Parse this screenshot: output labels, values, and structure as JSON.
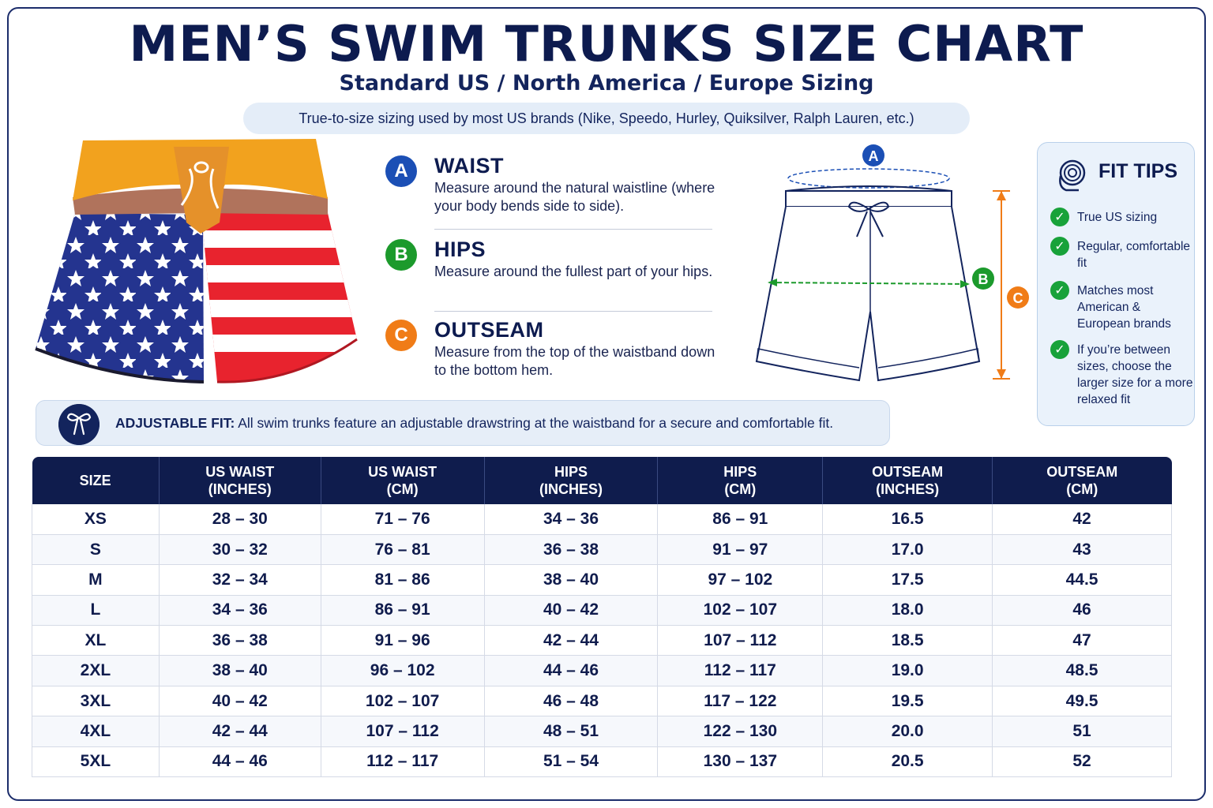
{
  "header": {
    "title": "MEN’S SWIM TRUNKS SIZE CHART",
    "subtitle": "Standard US / North America / Europe Sizing",
    "note": "True-to-size sizing used by most US brands (Nike, Speedo, Hurley, Quiksilver, Ralph Lauren, etc.)"
  },
  "measurements": [
    {
      "letter": "A",
      "name": "WAIST",
      "description": "Measure around the natural waistline (where your body bends side to side).",
      "color": "#1b4fb5"
    },
    {
      "letter": "B",
      "name": "HIPS",
      "description": "Measure around the fullest part of your hips.",
      "color": "#1c9a2c"
    },
    {
      "letter": "C",
      "name": "OUTSEAM",
      "description": "Measure from the top of the waistband down to the bottom hem.",
      "color": "#f07c17"
    }
  ],
  "diagram": {
    "label_a": "A",
    "label_b": "B",
    "label_c": "C"
  },
  "fit_tips": {
    "title": "FIT TIPS",
    "items": [
      "True US sizing",
      "Regular, comfortable fit",
      "Matches most American & European brands",
      "If you’re between sizes, choose the larger size for a more relaxed fit"
    ]
  },
  "adjustable": {
    "label": "ADJUSTABLE FIT:",
    "text": "All swim trunks feature an adjustable drawstring at the waistband for a secure and comfortable fit."
  },
  "table": {
    "headers": [
      [
        "SIZE",
        ""
      ],
      [
        "US WAIST",
        "(INCHES)"
      ],
      [
        "US WAIST",
        "(CM)"
      ],
      [
        "HIPS",
        "(INCHES)"
      ],
      [
        "HIPS",
        "(CM)"
      ],
      [
        "OUTSEAM",
        "(INCHES)"
      ],
      [
        "OUTSEAM",
        "(CM)"
      ]
    ],
    "rows": [
      [
        "XS",
        "28 – 30",
        "71 – 76",
        "34 – 36",
        "86 – 91",
        "16.5",
        "42"
      ],
      [
        "S",
        "30 – 32",
        "76 – 81",
        "36 – 38",
        "91 – 97",
        "17.0",
        "43"
      ],
      [
        "M",
        "32 – 34",
        "81 – 86",
        "38 – 40",
        "97 – 102",
        "17.5",
        "44.5"
      ],
      [
        "L",
        "34 – 36",
        "86 – 91",
        "40 – 42",
        "102 – 107",
        "18.0",
        "46"
      ],
      [
        "XL",
        "36 – 38",
        "91 – 96",
        "42 – 44",
        "107 – 112",
        "18.5",
        "47"
      ],
      [
        "2XL",
        "38 – 40",
        "96 – 102",
        "44 – 46",
        "112 – 117",
        "19.0",
        "48.5"
      ],
      [
        "3XL",
        "40 – 42",
        "102 – 107",
        "46 – 48",
        "117 – 122",
        "19.5",
        "49.5"
      ],
      [
        "4XL",
        "42 – 44",
        "107 – 112",
        "48 – 51",
        "122 – 130",
        "20.0",
        "51"
      ],
      [
        "5XL",
        "44 – 46",
        "112 – 117",
        "51 – 54",
        "130 – 137",
        "20.5",
        "52"
      ]
    ]
  }
}
